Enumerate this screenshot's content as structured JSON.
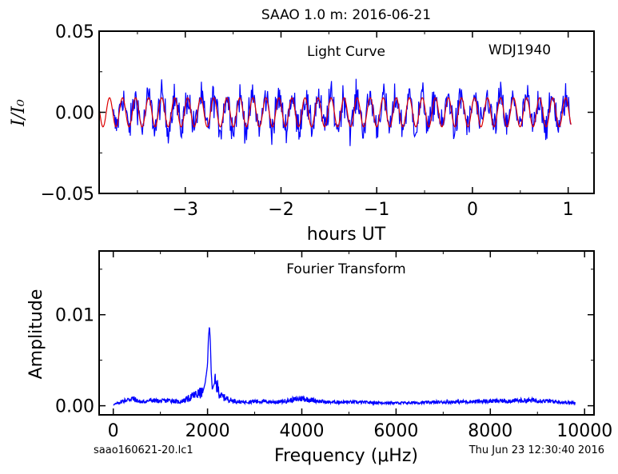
{
  "figure": {
    "title": "SAAO 1.0 m:  2016-06-21",
    "footer_left": "saao160621-20.lc1",
    "footer_right": "Thu Jun 23 12:30:40 2016"
  },
  "colors": {
    "data": "#0000ff",
    "model": "#dd0000",
    "axes": "#000000"
  },
  "chart_data": [
    {
      "type": "line",
      "panel": "light-curve",
      "annotations": [
        "Light Curve",
        "WDJ1940"
      ],
      "xlabel": "hours UT",
      "ylabel": "I/I₀",
      "xlim": [
        -3.9,
        1.27
      ],
      "ylim": [
        -0.05,
        0.05
      ],
      "xticks": [
        -3,
        -2,
        -1,
        0,
        1
      ],
      "xtick_labels": [
        "−3",
        "−2",
        "−1",
        "0",
        "1"
      ],
      "yticks": [
        -0.05,
        0.0,
        0.05
      ],
      "ytick_labels": [
        "−0.05",
        "0.00",
        "0.05"
      ],
      "series": [
        {
          "role": "data",
          "x_range": [
            -3.75,
            1.03
          ],
          "mean": 0.0,
          "scatter_max": 0.03
        },
        {
          "role": "model",
          "x_range": [
            -3.9,
            1.03
          ],
          "amplitude": 0.009,
          "frequency_uHz": 2040
        }
      ]
    },
    {
      "type": "line",
      "panel": "fourier-transform",
      "annotations": [
        "Fourier Transform"
      ],
      "xlabel": "Frequency (μHz)",
      "ylabel": "Amplitude",
      "xlim": [
        -300,
        10200
      ],
      "ylim": [
        -0.001,
        0.017
      ],
      "xticks": [
        0,
        2000,
        4000,
        6000,
        8000,
        10000
      ],
      "xtick_labels": [
        "0",
        "2000",
        "4000",
        "6000",
        "8000",
        "10000"
      ],
      "yticks": [
        0.0,
        0.01
      ],
      "ytick_labels": [
        "0.00",
        "0.01"
      ],
      "series": [
        {
          "role": "amplitude-spectrum",
          "x": [
            0,
            200,
            400,
            600,
            800,
            1000,
            1200,
            1400,
            1600,
            1700,
            1800,
            1900,
            1950,
            2000,
            2020,
            2040,
            2060,
            2080,
            2100,
            2150,
            2200,
            2250,
            2300,
            2400,
            2500,
            2700,
            3000,
            3500,
            4000,
            4500,
            5000,
            6000,
            7000,
            8000,
            9000,
            9500,
            9800
          ],
          "y": [
            0.0001,
            0.0005,
            0.0008,
            0.0004,
            0.0006,
            0.0005,
            0.0006,
            0.0004,
            0.0008,
            0.0011,
            0.0013,
            0.0015,
            0.0025,
            0.0045,
            0.0075,
            0.0088,
            0.007,
            0.0035,
            0.0018,
            0.0025,
            0.0022,
            0.0014,
            0.001,
            0.0008,
            0.0006,
            0.0004,
            0.0005,
            0.0004,
            0.0008,
            0.0004,
            0.0004,
            0.0003,
            0.0004,
            0.0005,
            0.0006,
            0.0004,
            0.0003
          ]
        }
      ]
    }
  ]
}
